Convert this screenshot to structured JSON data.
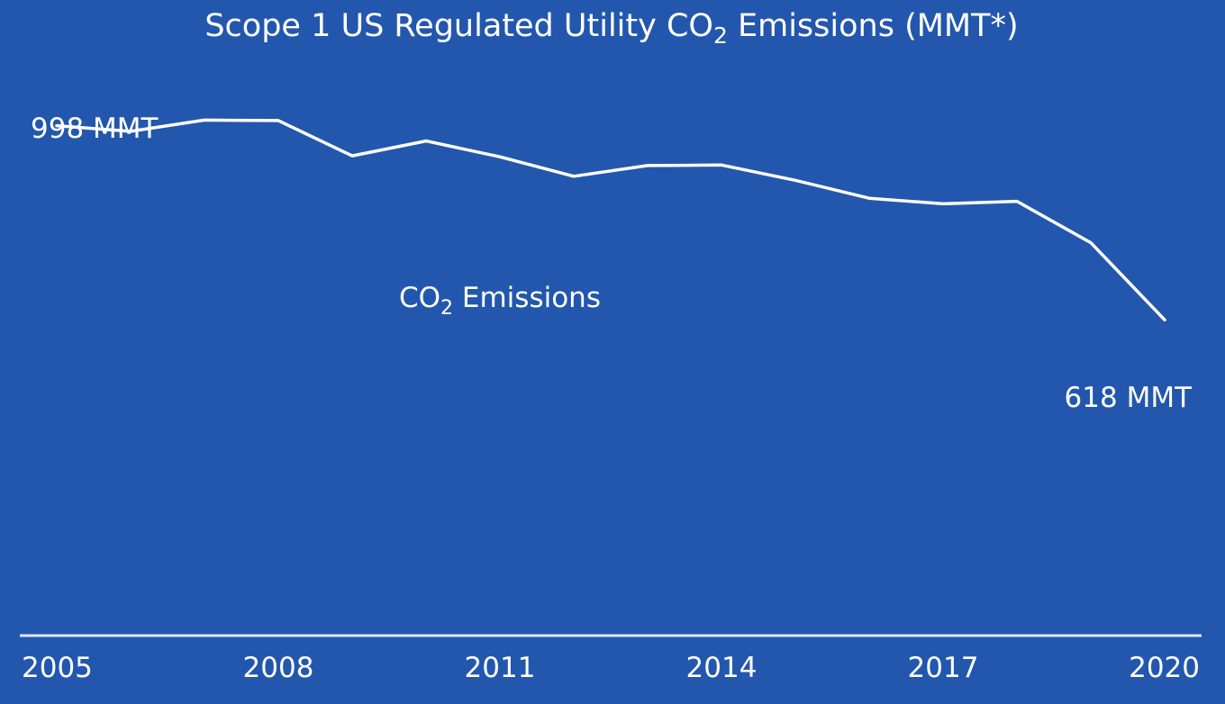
{
  "chart_data": {
    "type": "line",
    "title": {
      "prefix": "Scope 1 US Regulated Utility CO",
      "subscript": "2",
      "suffix": " Emissions (MMT*)"
    },
    "xlabel": "",
    "ylabel": "",
    "x": [
      2005,
      2006,
      2007,
      2008,
      2009,
      2010,
      2011,
      2012,
      2013,
      2014,
      2015,
      2016,
      2017,
      2018,
      2019,
      2020
    ],
    "xticks": [
      "2005",
      "2008",
      "2011",
      "2014",
      "2017",
      "2020"
    ],
    "series": [
      {
        "name": {
          "prefix": "CO",
          "subscript": "2",
          "suffix": " Emissions"
        },
        "values": [
          998,
          987,
          1009,
          1008,
          939,
          968,
          937,
          899,
          920,
          921,
          891,
          856,
          845,
          850,
          769,
          618
        ]
      }
    ],
    "annotations": {
      "start": "998 MMT",
      "end": "618 MMT"
    },
    "ylim": [
      0,
      1244
    ],
    "grid": false,
    "legend": "none",
    "colors": {
      "background": "#2257ad",
      "line": "#ffffff",
      "text": "#ffffff",
      "axis": "#dce6f5"
    }
  }
}
